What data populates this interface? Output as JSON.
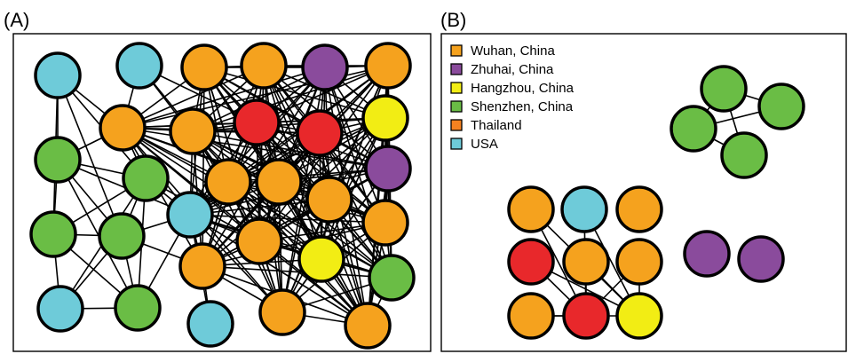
{
  "panels": {
    "a_label": "(A)",
    "b_label": "(B)"
  },
  "legend": [
    {
      "label": "Wuhan, China",
      "color": "#f5a21e"
    },
    {
      "label": "Zhuhai, China",
      "color": "#8a4b9c"
    },
    {
      "label": "Hangzhou, China",
      "color": "#f2ed14"
    },
    {
      "label": "Shenzhen, China",
      "color": "#6abd45"
    },
    {
      "label": "Thailand",
      "color": "#f58220"
    },
    {
      "label": "USA",
      "color": "#6ecbd9"
    }
  ],
  "node_colors": {
    "orange": "#f5a21e",
    "purple": "#8a4b9c",
    "yellow": "#f2ed14",
    "green": "#6abd45",
    "blue": "#6ecbd9",
    "red": "#e8282b"
  }
}
